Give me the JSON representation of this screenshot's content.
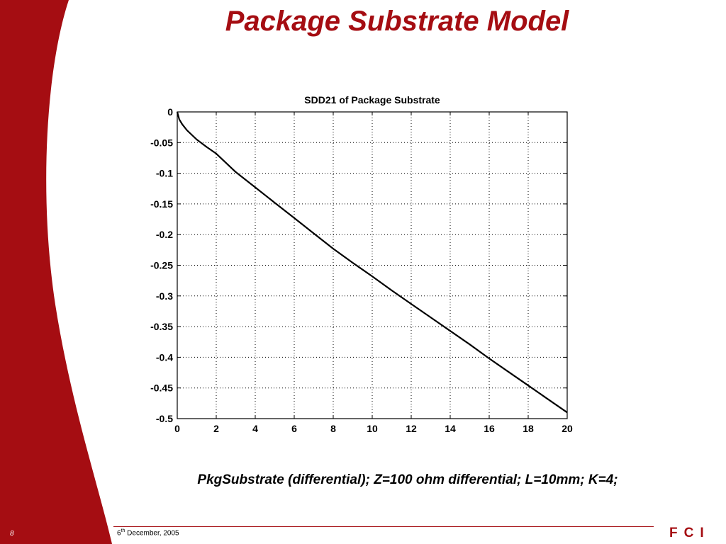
{
  "slide": {
    "title": "Package Substrate Model",
    "caption": "PkgSubstrate (differential); Z=100 ohm differential; L=10mm; K=4;",
    "page_number": "8",
    "date_day": "6",
    "date_suffix": "th",
    "date_rest": " December, 2005",
    "logo": "FCI",
    "colors": {
      "accent": "#a50d12",
      "background": "#ffffff",
      "line": "#000000"
    }
  },
  "chart_data": {
    "type": "line",
    "title": "SDD21 of Package Substrate",
    "xlabel": "",
    "ylabel": "",
    "xlim": [
      0,
      20
    ],
    "ylim": [
      -0.5,
      0
    ],
    "grid": true,
    "x_ticks": [
      "0",
      "2",
      "4",
      "6",
      "8",
      "10",
      "12",
      "14",
      "16",
      "18",
      "20"
    ],
    "y_ticks": [
      "0",
      "-0.05",
      "-0.1",
      "-0.15",
      "-0.2",
      "-0.25",
      "-0.3",
      "-0.35",
      "-0.4",
      "-0.45",
      "-0.5"
    ],
    "series": [
      {
        "x": [
          0,
          0.1,
          0.25,
          0.5,
          1,
          1.5,
          2,
          3,
          4,
          5,
          6,
          7,
          8,
          9,
          10,
          11,
          12,
          13,
          14,
          15,
          16,
          17,
          18,
          19,
          20
        ],
        "values": [
          0,
          -0.012,
          -0.02,
          -0.03,
          -0.045,
          -0.057,
          -0.068,
          -0.098,
          -0.123,
          -0.148,
          -0.173,
          -0.198,
          -0.223,
          -0.246,
          -0.268,
          -0.291,
          -0.313,
          -0.335,
          -0.357,
          -0.379,
          -0.402,
          -0.424,
          -0.446,
          -0.468,
          -0.49
        ]
      }
    ]
  }
}
